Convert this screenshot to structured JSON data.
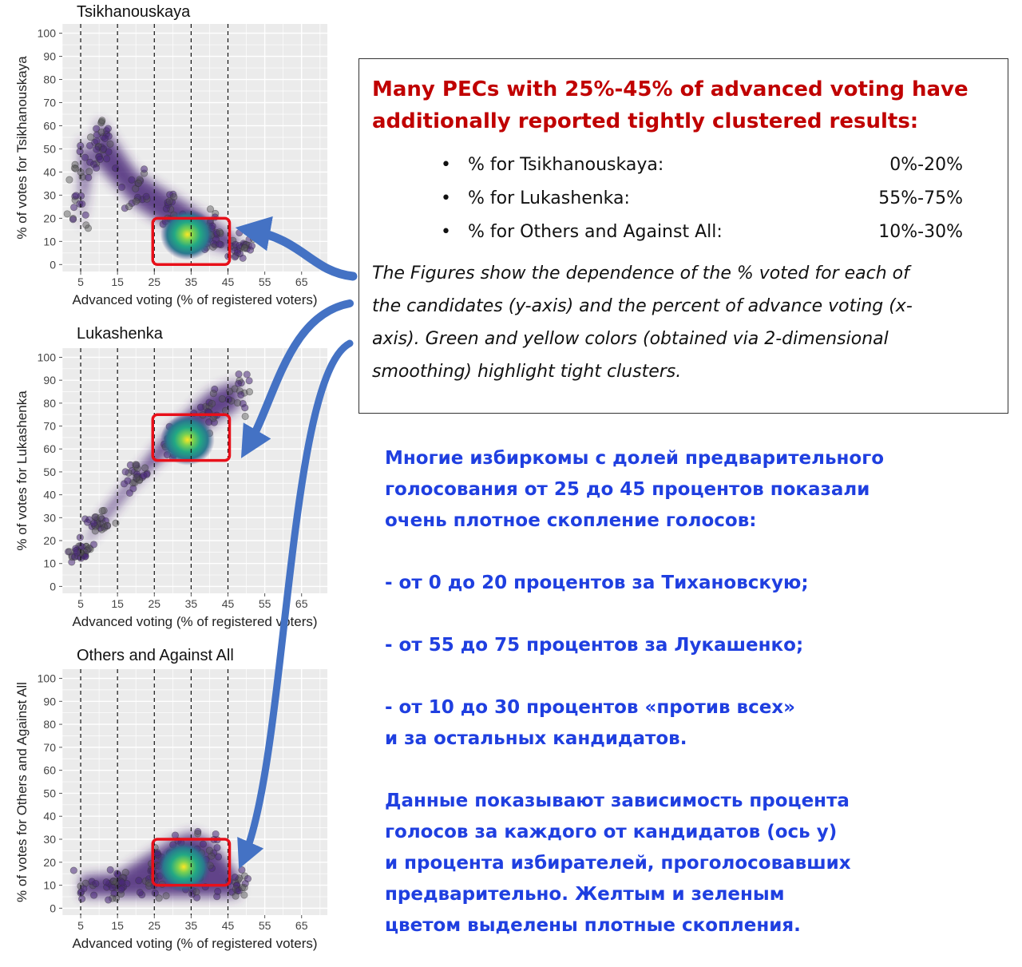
{
  "chart_data": [
    {
      "type": "scatter",
      "title": "Tsikhanouskaya",
      "xlabel": "Advanced voting (% of registered voters)",
      "ylabel": "% of votes for Tsikhanouskaya",
      "xlim": [
        0,
        72
      ],
      "ylim": [
        -3,
        104
      ],
      "x_ticks": [
        5,
        15,
        25,
        35,
        45,
        55,
        65
      ],
      "y_ticks": [
        0,
        10,
        20,
        30,
        40,
        50,
        60,
        70,
        80,
        90,
        100
      ],
      "vlines": [
        5,
        15,
        25,
        35,
        45
      ],
      "grid": true,
      "density_band": [
        [
          5,
          15,
          55
        ],
        [
          10,
          63,
          42
        ],
        [
          20,
          40,
          25
        ],
        [
          30,
          30,
          15
        ],
        [
          40,
          20,
          8
        ],
        [
          48,
          10,
          5
        ]
      ],
      "cluster_center": [
        34,
        13
      ],
      "highlight_box": {
        "x": [
          25,
          45
        ],
        "y": [
          0,
          20
        ]
      }
    },
    {
      "type": "scatter",
      "title": "Lukashenka",
      "xlabel": "Advanced voting (% of registered voters)",
      "ylabel": "% of votes for Lukashenka",
      "xlim": [
        0,
        72
      ],
      "ylim": [
        -3,
        104
      ],
      "x_ticks": [
        5,
        15,
        25,
        35,
        45,
        55,
        65
      ],
      "y_ticks": [
        0,
        10,
        20,
        30,
        40,
        50,
        60,
        70,
        80,
        90,
        100
      ],
      "vlines": [
        5,
        15,
        25,
        35,
        45
      ],
      "grid": true,
      "density_band": [
        [
          5,
          15,
          15
        ],
        [
          10,
          25,
          30
        ],
        [
          20,
          45,
          50
        ],
        [
          30,
          60,
          70
        ],
        [
          40,
          70,
          85
        ],
        [
          48,
          78,
          90
        ]
      ],
      "cluster_center": [
        34,
        64
      ],
      "highlight_box": {
        "x": [
          25,
          45
        ],
        "y": [
          55,
          75
        ]
      }
    },
    {
      "type": "scatter",
      "title": "Others and Against All",
      "xlabel": "Advanced voting (% of registered voters)",
      "ylabel": "% of votes for Others and Against All",
      "xlim": [
        0,
        72
      ],
      "ylim": [
        -3,
        104
      ],
      "x_ticks": [
        5,
        15,
        25,
        35,
        45,
        55,
        65
      ],
      "y_ticks": [
        0,
        10,
        20,
        30,
        40,
        50,
        60,
        70,
        80,
        90,
        100
      ],
      "vlines": [
        5,
        15,
        25,
        35,
        45
      ],
      "grid": true,
      "density_band": [
        [
          5,
          5,
          14
        ],
        [
          15,
          5,
          15
        ],
        [
          25,
          5,
          25
        ],
        [
          30,
          5,
          30
        ],
        [
          35,
          5,
          33
        ],
        [
          40,
          5,
          30
        ],
        [
          48,
          5,
          14
        ]
      ],
      "cluster_center": [
        33,
        18
      ],
      "highlight_box": {
        "x": [
          25,
          45
        ],
        "y": [
          10,
          30
        ]
      }
    }
  ],
  "english_box": {
    "headline_line1": "Many PECs with 25%-45% of advanced voting have",
    "headline_line2": "additionally reported tightly clustered results:",
    "items": [
      {
        "label": "% for Tsikhanouskaya:",
        "range": "0%-20%"
      },
      {
        "label": "% for Lukashenka:",
        "range": "55%-75%"
      },
      {
        "label": "% for Others and Against All:",
        "range": "10%-30%"
      }
    ],
    "note_line1": "The Figures show the dependence of the % voted for each of",
    "note_line2": "the candidates (y-axis) and the percent of advance voting (x-",
    "note_line3": "axis). Green and yellow colors (obtained via 2-dimensional",
    "note_line4": "smoothing) highlight tight clusters."
  },
  "russian_text": {
    "p1_l1": "Многие избиркомы с долей предварительного",
    "p1_l2": "голосования от 25 до 45 процентов показали",
    "p1_l3": "очень плотное скопление голосов:",
    "p2": "- от 0 до 20 процентов за Тихановскую;",
    "p3": "- от 55 до 75 процентов за Лукашенко;",
    "p4_l1": "- от 10 до 30 процентов «против всех»",
    "p4_l2": "и за остальных кандидатов.",
    "p5_l1": "Данные показывают зависимость процента",
    "p5_l2": "голосов за каждого от кандидатов (ось y)",
    "p5_l3": "и процента избирателей, проголосовавших",
    "p5_l4": "предварительно. Желтым и зеленым",
    "p5_l5": "цветом выделены плотные скопления."
  },
  "colors": {
    "panel_bg": "#ebebeb",
    "grid": "#ffffff",
    "density_low": "#482878",
    "density_mid": "#21908c",
    "density_high": "#fde725",
    "highlight_box": "#e8101a",
    "arrow": "#4472c4",
    "headline": "#c00000",
    "russian_text": "#1f3fe0"
  }
}
